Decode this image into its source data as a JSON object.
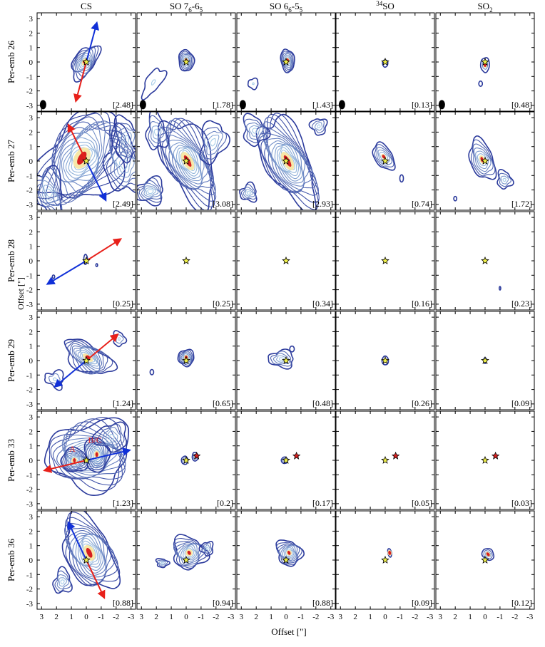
{
  "figure": {
    "xlabel": "Offset [\"]",
    "ylabel": "Offset [\"]"
  },
  "chart_data": {
    "type": "contour-grid",
    "columns": [
      {
        "base": "CS",
        "sup": "",
        "sub1": "",
        "mid": "",
        "sub2": ""
      },
      {
        "base": "SO 7",
        "sub1": "6",
        "mid": "-6",
        "sub2": "5",
        "sup": ""
      },
      {
        "base": "SO 6",
        "sub1": "6",
        "mid": "-5",
        "sub2": "5",
        "sup": ""
      },
      {
        "base": "SO",
        "sup": "34",
        "sub1": "",
        "mid": "",
        "sub2": ""
      },
      {
        "base": "SO",
        "sub1": "2",
        "sup": "",
        "mid": "",
        "sub2": ""
      }
    ],
    "rows": [
      "Per-emb 26",
      "Per-emb 27",
      "Per-emb 28",
      "Per-emb 29",
      "Per-emb 33",
      "Per-emb 36"
    ],
    "xlim": [
      3.3,
      -3.3
    ],
    "ylim": [
      -3.4,
      3.4
    ],
    "xticks": [
      3,
      2,
      1,
      0,
      -1,
      -2,
      -3
    ],
    "xtick_labels": [
      "3",
      "2",
      "1",
      "0",
      "-1",
      "-2",
      "-3"
    ],
    "yticks": [
      3,
      2,
      1,
      0,
      -1,
      -2,
      -3
    ],
    "ytick_labels": [
      "3",
      "2",
      "1",
      "0",
      "-1",
      "-2",
      "-3"
    ],
    "peak_labels": [
      [
        "[2.48]",
        "[1.78]",
        "[1.43]",
        "[0.13]",
        "[0.48]"
      ],
      [
        "[2.49]",
        "[3.08]",
        "[2.93]",
        "[0.74]",
        "[1.72]"
      ],
      [
        "[0.25]",
        "[0.25]",
        "[0.34]",
        "[0.16]",
        "[0.23]"
      ],
      [
        "[1.24]",
        "[0.65]",
        "[0.48]",
        "[0.26]",
        "[0.09]"
      ],
      [
        "[1.23]",
        "[0.2]",
        "[0.17]",
        "[0.05]",
        "[0.03]"
      ],
      [
        "[0.88]",
        "[0.94]",
        "[0.88]",
        "[0.09]",
        "[0.12]"
      ]
    ],
    "outflow_arrows": [
      {
        "row": 0,
        "blue_to": [
          -0.7,
          2.7
        ],
        "red_to": [
          0.7,
          -2.7
        ]
      },
      {
        "row": 1,
        "blue_to": [
          -1.3,
          -2.7
        ],
        "red_to": [
          1.2,
          2.5
        ]
      },
      {
        "row": 2,
        "blue_to": [
          2.6,
          -1.6
        ],
        "red_to": [
          -2.3,
          1.5
        ]
      },
      {
        "row": 3,
        "blue_to": [
          2.1,
          -1.8
        ],
        "red_to": [
          -2.1,
          1.8
        ]
      },
      {
        "row": 4,
        "blue_to": [
          -2.9,
          0.7
        ],
        "red_to": [
          2.8,
          -0.7
        ]
      },
      {
        "row": 5,
        "blue_to": [
          1.2,
          2.6
        ],
        "red_to": [
          -1.2,
          -2.6
        ]
      }
    ],
    "companion_labels": {
      "row": 4,
      "column": 0,
      "labels": [
        "A",
        "B/C"
      ],
      "color": "#dd2222"
    },
    "beam_shown_in_row": 0,
    "colors": {
      "blue_arrow": "#1030d8",
      "red_arrow": "#e8201a",
      "contour_outer": "#2b3a9c",
      "contour_inner": "#a8cde8",
      "peak": "#d61f1f",
      "star": "#f2f24a"
    },
    "colormap": "RdYlBu_r"
  }
}
